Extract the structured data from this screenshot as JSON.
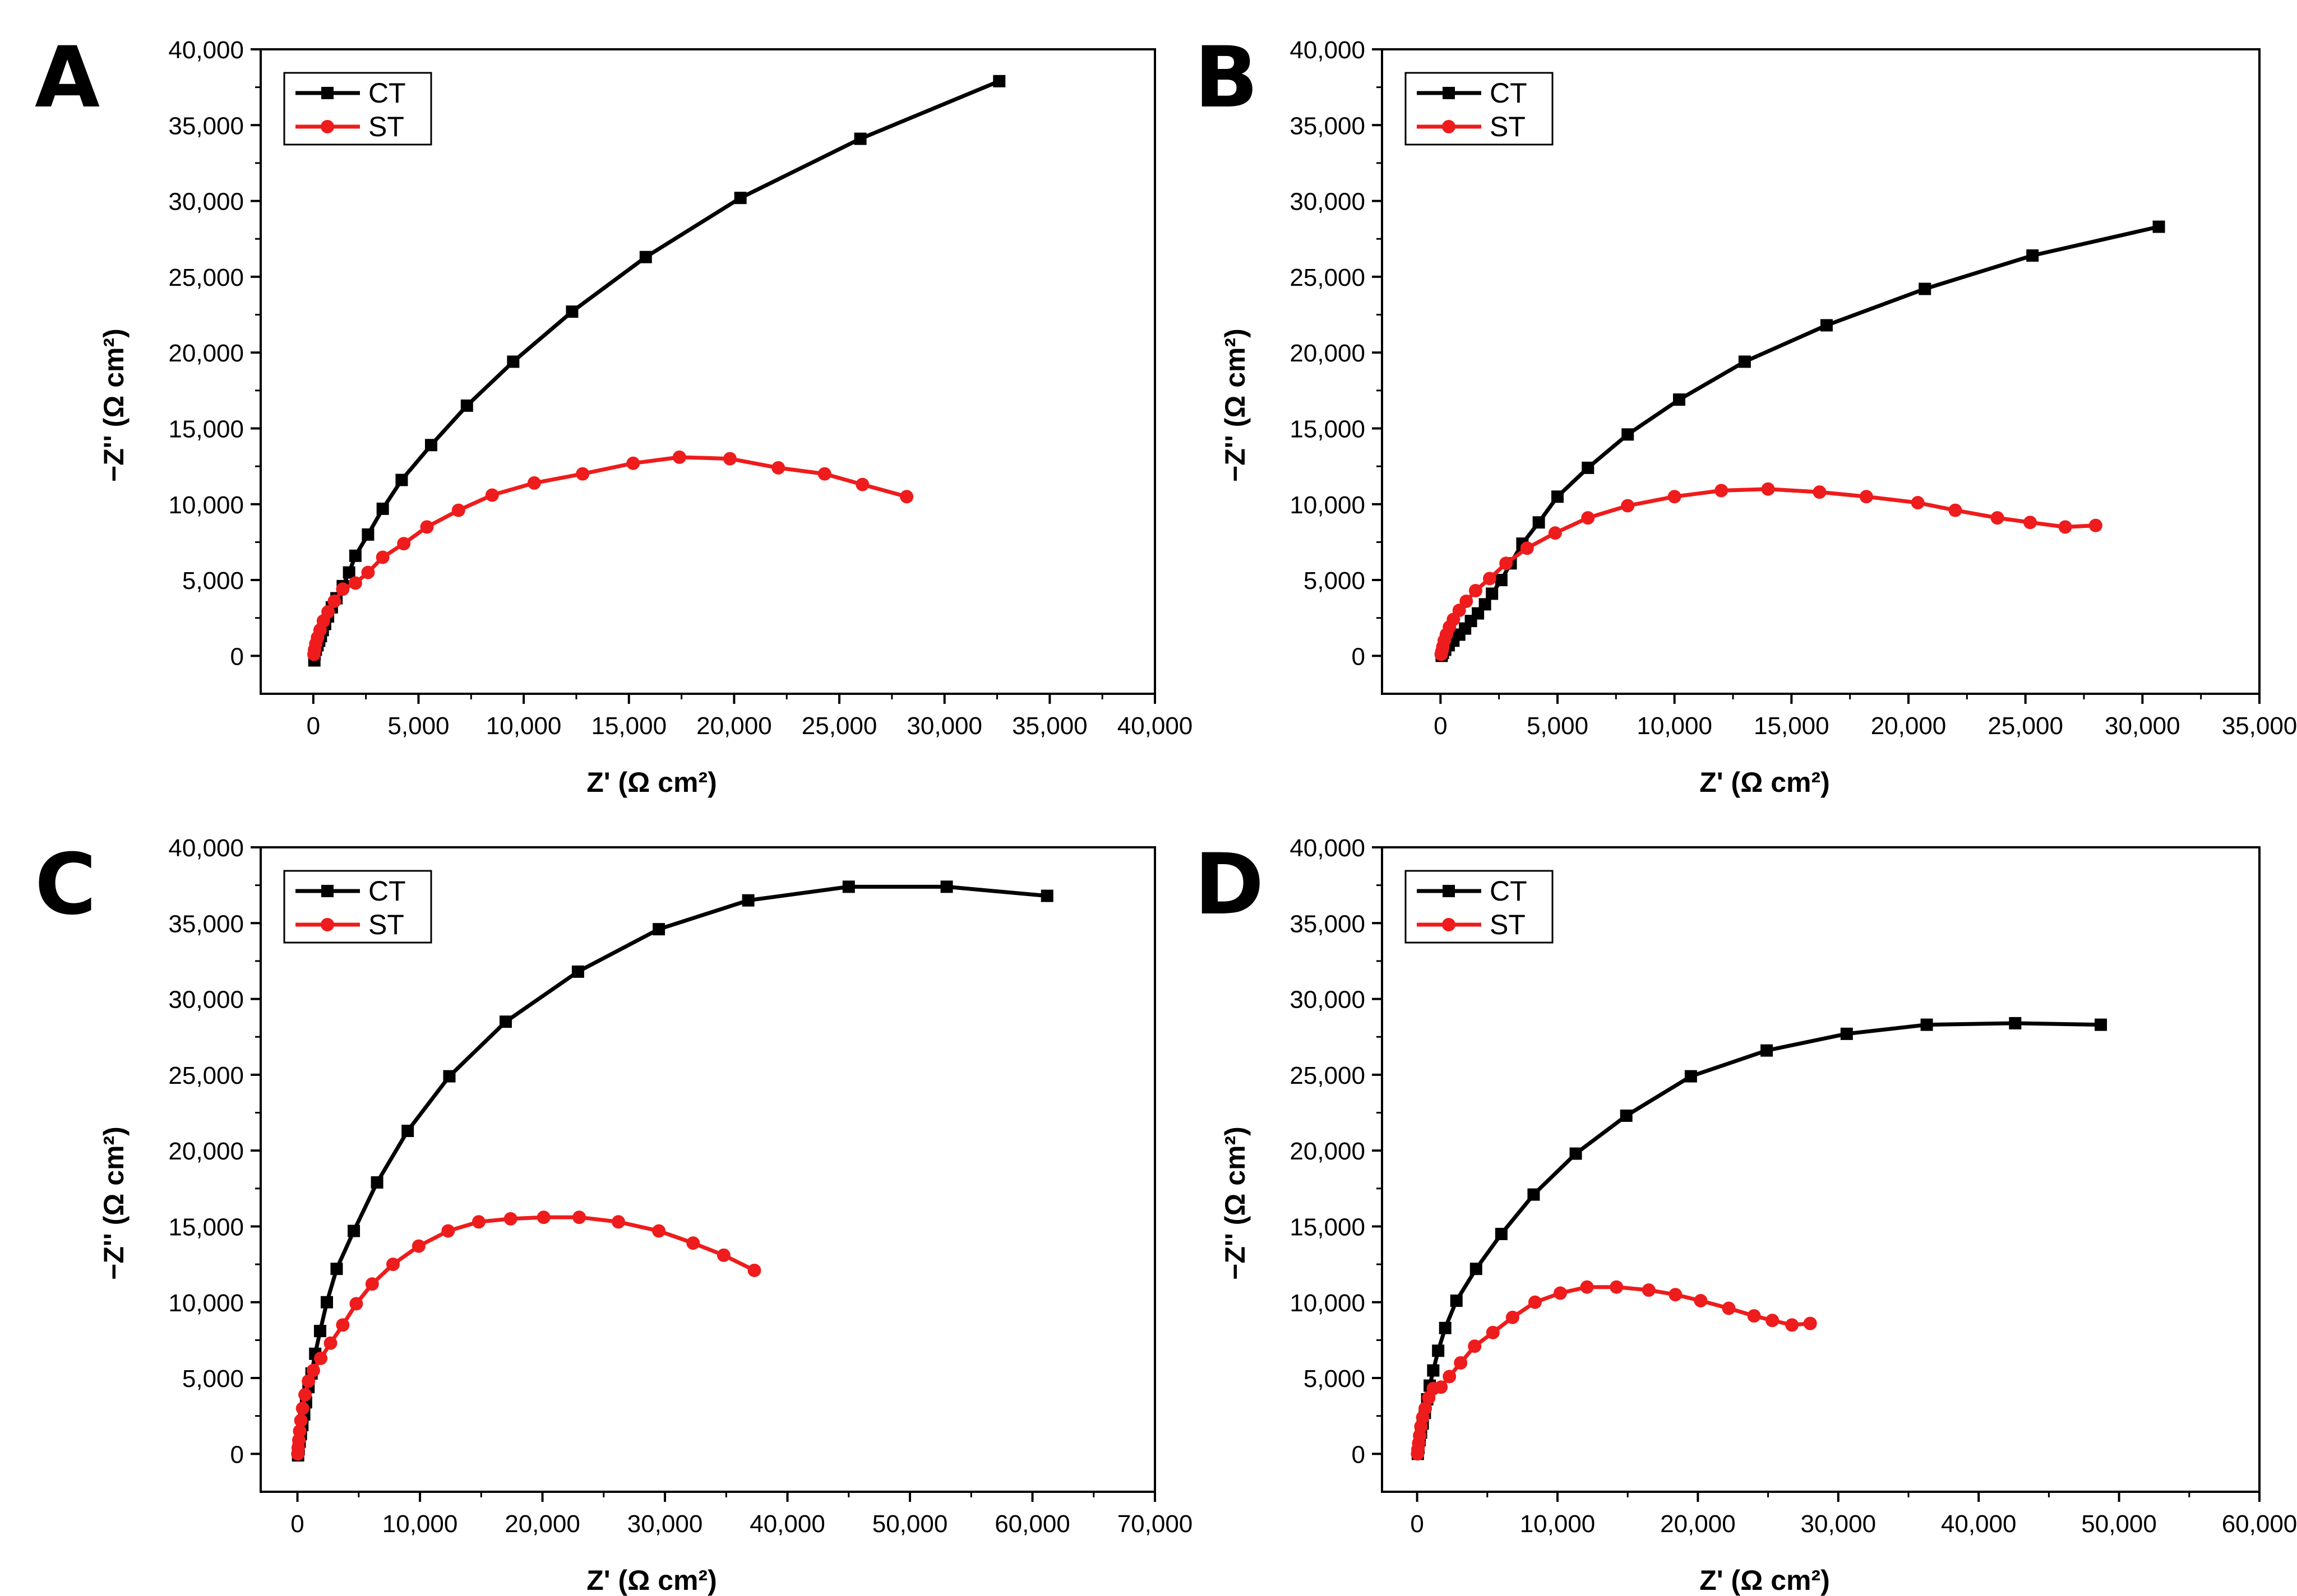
{
  "chart_data": [
    {
      "panel": "A",
      "type": "line",
      "xlabel": "Z' (Ω cm²)",
      "ylabel": "−Z'' (Ω cm²)",
      "xlim": [
        -2500,
        40000
      ],
      "ylim": [
        -2500,
        40000
      ],
      "xticks": [
        0,
        5000,
        10000,
        15000,
        20000,
        25000,
        30000,
        35000,
        40000
      ],
      "yticks": [
        0,
        5000,
        10000,
        15000,
        20000,
        25000,
        30000,
        35000,
        40000
      ],
      "tick_labels_x": [
        "0",
        "5,000",
        "10,000",
        "15,000",
        "20,000",
        "25,000",
        "30,000",
        "35,000",
        "40,000"
      ],
      "tick_labels_y": [
        "0",
        "5,000",
        "10,000",
        "15,000",
        "20,000",
        "25,000",
        "30,000",
        "35,000",
        "40,000"
      ],
      "legend": "top-left",
      "grid": false,
      "series": [
        {
          "name": "CT",
          "color": "#000000",
          "marker": "square",
          "points": [
            [
              50,
              -300
            ],
            [
              60,
              100
            ],
            [
              120,
              400
            ],
            [
              200,
              700
            ],
            [
              280,
              1000
            ],
            [
              360,
              1300
            ],
            [
              450,
              1700
            ],
            [
              560,
              2100
            ],
            [
              700,
              2600
            ],
            [
              880,
              3200
            ],
            [
              1100,
              3800
            ],
            [
              1400,
              4600
            ],
            [
              1700,
              5500
            ],
            [
              2000,
              6600
            ],
            [
              2600,
              8000
            ],
            [
              3300,
              9700
            ],
            [
              4200,
              11600
            ],
            [
              5600,
              13900
            ],
            [
              7300,
              16500
            ],
            [
              9500,
              19400
            ],
            [
              12300,
              22700
            ],
            [
              15800,
              26300
            ],
            [
              20300,
              30200
            ],
            [
              26000,
              34100
            ],
            [
              32600,
              37900
            ]
          ]
        },
        {
          "name": "ST",
          "color": "#ee1c1c",
          "marker": "circle",
          "points": [
            [
              30,
              100
            ],
            [
              60,
              400
            ],
            [
              120,
              800
            ],
            [
              200,
              1200
            ],
            [
              320,
              1700
            ],
            [
              480,
              2300
            ],
            [
              700,
              2900
            ],
            [
              1000,
              3600
            ],
            [
              1400,
              4400
            ],
            [
              2000,
              4800
            ],
            [
              2600,
              5500
            ],
            [
              3300,
              6500
            ],
            [
              4300,
              7400
            ],
            [
              5400,
              8500
            ],
            [
              6900,
              9600
            ],
            [
              8500,
              10600
            ],
            [
              10500,
              11400
            ],
            [
              12800,
              12000
            ],
            [
              15200,
              12700
            ],
            [
              17400,
              13100
            ],
            [
              19800,
              13000
            ],
            [
              22100,
              12400
            ],
            [
              24300,
              12000
            ],
            [
              26100,
              11300
            ],
            [
              28200,
              10500
            ]
          ]
        }
      ]
    },
    {
      "panel": "B",
      "type": "line",
      "xlabel": "Z' (Ω cm²)",
      "ylabel": "−Z'' (Ω cm²)",
      "xlim": [
        -2500,
        35000
      ],
      "ylim": [
        -2500,
        40000
      ],
      "xticks": [
        0,
        5000,
        10000,
        15000,
        20000,
        25000,
        30000,
        35000
      ],
      "yticks": [
        0,
        5000,
        10000,
        15000,
        20000,
        25000,
        30000,
        35000,
        40000
      ],
      "tick_labels_x": [
        "0",
        "5,000",
        "10,000",
        "15,000",
        "20,000",
        "25,000",
        "30,000",
        "35,000"
      ],
      "tick_labels_y": [
        "0",
        "5,000",
        "10,000",
        "15,000",
        "20,000",
        "25,000",
        "30,000",
        "35,000",
        "40,000"
      ],
      "legend": "top-left",
      "grid": false,
      "series": [
        {
          "name": "CT",
          "color": "#000000",
          "marker": "square",
          "points": [
            [
              50,
              0
            ],
            [
              100,
              200
            ],
            [
              200,
              400
            ],
            [
              350,
              700
            ],
            [
              550,
              1000
            ],
            [
              800,
              1400
            ],
            [
              1050,
              1800
            ],
            [
              1300,
              2300
            ],
            [
              1600,
              2800
            ],
            [
              1900,
              3400
            ],
            [
              2200,
              4100
            ],
            [
              2600,
              5000
            ],
            [
              3000,
              6100
            ],
            [
              3500,
              7400
            ],
            [
              4200,
              8800
            ],
            [
              5000,
              10500
            ],
            [
              6300,
              12400
            ],
            [
              8000,
              14600
            ],
            [
              10200,
              16900
            ],
            [
              13000,
              19400
            ],
            [
              16500,
              21800
            ],
            [
              20700,
              24200
            ],
            [
              25300,
              26400
            ],
            [
              30700,
              28300
            ]
          ]
        },
        {
          "name": "ST",
          "color": "#ee1c1c",
          "marker": "circle",
          "points": [
            [
              30,
              100
            ],
            [
              60,
              300
            ],
            [
              100,
              600
            ],
            [
              160,
              1000
            ],
            [
              250,
              1400
            ],
            [
              380,
              1900
            ],
            [
              550,
              2400
            ],
            [
              800,
              3000
            ],
            [
              1100,
              3600
            ],
            [
              1500,
              4300
            ],
            [
              2100,
              5100
            ],
            [
              2800,
              6100
            ],
            [
              3700,
              7100
            ],
            [
              4900,
              8100
            ],
            [
              6300,
              9100
            ],
            [
              8000,
              9900
            ],
            [
              10000,
              10500
            ],
            [
              12000,
              10900
            ],
            [
              14000,
              11000
            ],
            [
              16200,
              10800
            ],
            [
              18200,
              10500
            ],
            [
              20400,
              10100
            ],
            [
              22000,
              9600
            ],
            [
              23800,
              9100
            ],
            [
              25200,
              8800
            ],
            [
              26700,
              8500
            ],
            [
              28000,
              8600
            ]
          ]
        }
      ]
    },
    {
      "panel": "C",
      "type": "line",
      "xlabel": "Z' (Ω cm²)",
      "ylabel": "−Z'' (Ω cm²)",
      "xlim": [
        -3000,
        70000
      ],
      "ylim": [
        -2500,
        40000
      ],
      "xticks": [
        0,
        10000,
        20000,
        30000,
        40000,
        50000,
        60000,
        70000
      ],
      "yticks": [
        0,
        5000,
        10000,
        15000,
        20000,
        25000,
        30000,
        35000,
        40000
      ],
      "tick_labels_x": [
        "0",
        "10,000",
        "20,000",
        "30,000",
        "40,000",
        "50,000",
        "60,000",
        "70,000"
      ],
      "tick_labels_y": [
        "0",
        "5,000",
        "10,000",
        "15,000",
        "20,000",
        "25,000",
        "30,000",
        "35,000",
        "40,000"
      ],
      "legend": "top-left",
      "grid": false,
      "series": [
        {
          "name": "CT",
          "color": "#000000",
          "marker": "square",
          "points": [
            [
              50,
              -100
            ],
            [
              100,
              300
            ],
            [
              180,
              800
            ],
            [
              280,
              1300
            ],
            [
              400,
              1900
            ],
            [
              550,
              2600
            ],
            [
              700,
              3400
            ],
            [
              900,
              4400
            ],
            [
              1150,
              5300
            ],
            [
              1450,
              6600
            ],
            [
              1850,
              8100
            ],
            [
              2400,
              10000
            ],
            [
              3200,
              12200
            ],
            [
              4600,
              14700
            ],
            [
              6500,
              17900
            ],
            [
              9000,
              21300
            ],
            [
              12400,
              24900
            ],
            [
              17000,
              28500
            ],
            [
              22900,
              31800
            ],
            [
              29500,
              34600
            ],
            [
              36800,
              36500
            ],
            [
              45000,
              37400
            ],
            [
              53000,
              37400
            ],
            [
              61200,
              36800
            ]
          ]
        },
        {
          "name": "ST",
          "color": "#ee1c1c",
          "marker": "circle",
          "points": [
            [
              30,
              0
            ],
            [
              60,
              400
            ],
            [
              110,
              900
            ],
            [
              180,
              1500
            ],
            [
              280,
              2200
            ],
            [
              420,
              3000
            ],
            [
              620,
              3900
            ],
            [
              900,
              4800
            ],
            [
              1300,
              5500
            ],
            [
              1900,
              6300
            ],
            [
              2700,
              7300
            ],
            [
              3700,
              8500
            ],
            [
              4800,
              9900
            ],
            [
              6100,
              11200
            ],
            [
              7800,
              12500
            ],
            [
              9900,
              13700
            ],
            [
              12300,
              14700
            ],
            [
              14800,
              15300
            ],
            [
              17400,
              15500
            ],
            [
              20100,
              15600
            ],
            [
              23000,
              15600
            ],
            [
              26200,
              15300
            ],
            [
              29500,
              14700
            ],
            [
              32300,
              13900
            ],
            [
              34800,
              13100
            ],
            [
              37300,
              12100
            ]
          ]
        }
      ]
    },
    {
      "panel": "D",
      "type": "line",
      "xlabel": "Z' (Ω cm²)",
      "ylabel": "−Z'' (Ω cm²)",
      "xlim": [
        -2500,
        60000
      ],
      "ylim": [
        -2500,
        40000
      ],
      "xticks": [
        0,
        10000,
        20000,
        30000,
        40000,
        50000,
        60000
      ],
      "yticks": [
        0,
        5000,
        10000,
        15000,
        20000,
        25000,
        30000,
        35000,
        40000
      ],
      "tick_labels_x": [
        "0",
        "10,000",
        "20,000",
        "30,000",
        "40,000",
        "50,000",
        "60,000"
      ],
      "tick_labels_y": [
        "0",
        "5,000",
        "10,000",
        "15,000",
        "20,000",
        "25,000",
        "30,000",
        "35,000",
        "40,000"
      ],
      "legend": "top-left",
      "grid": false,
      "series": [
        {
          "name": "CT",
          "color": "#000000",
          "marker": "square",
          "points": [
            [
              50,
              0
            ],
            [
              100,
              400
            ],
            [
              180,
              900
            ],
            [
              280,
              1400
            ],
            [
              400,
              2000
            ],
            [
              550,
              2700
            ],
            [
              720,
              3600
            ],
            [
              900,
              4500
            ],
            [
              1150,
              5500
            ],
            [
              1500,
              6800
            ],
            [
              2000,
              8300
            ],
            [
              2800,
              10100
            ],
            [
              4200,
              12200
            ],
            [
              6000,
              14500
            ],
            [
              8300,
              17100
            ],
            [
              11300,
              19800
            ],
            [
              14900,
              22300
            ],
            [
              19500,
              24900
            ],
            [
              24900,
              26600
            ],
            [
              30600,
              27700
            ],
            [
              36300,
              28300
            ],
            [
              42600,
              28400
            ],
            [
              48700,
              28300
            ]
          ]
        },
        {
          "name": "ST",
          "color": "#ee1c1c",
          "marker": "circle",
          "points": [
            [
              30,
              0
            ],
            [
              60,
              300
            ],
            [
              110,
              700
            ],
            [
              180,
              1200
            ],
            [
              270,
              1800
            ],
            [
              400,
              2400
            ],
            [
              580,
              3000
            ],
            [
              830,
              3700
            ],
            [
              1150,
              4300
            ],
            [
              1700,
              4400
            ],
            [
              2300,
              5100
            ],
            [
              3100,
              6000
            ],
            [
              4100,
              7100
            ],
            [
              5400,
              8000
            ],
            [
              6800,
              9000
            ],
            [
              8400,
              10000
            ],
            [
              10200,
              10600
            ],
            [
              12100,
              11000
            ],
            [
              14200,
              11000
            ],
            [
              16500,
              10800
            ],
            [
              18400,
              10500
            ],
            [
              20200,
              10100
            ],
            [
              22200,
              9600
            ],
            [
              24000,
              9100
            ],
            [
              25300,
              8800
            ],
            [
              26700,
              8500
            ],
            [
              28000,
              8600
            ]
          ]
        }
      ]
    }
  ]
}
